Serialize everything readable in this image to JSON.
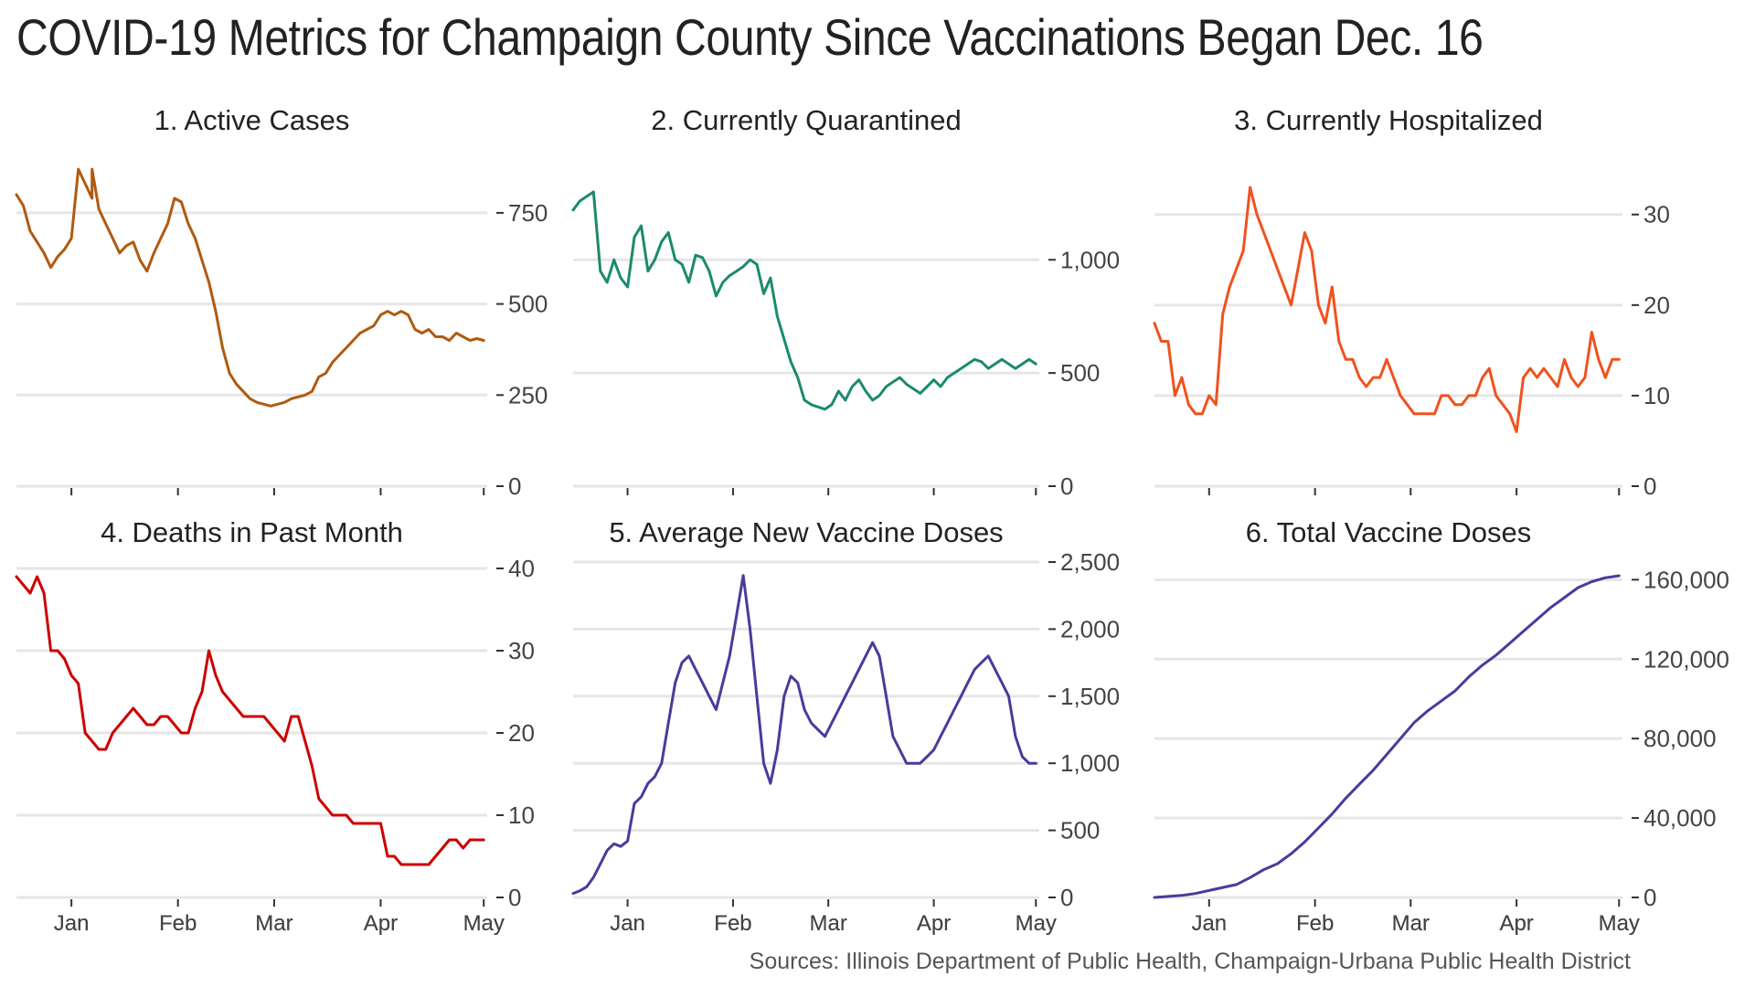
{
  "title": "COVID-19 Metrics for Champaign County Since Vaccinations Began Dec. 16",
  "source": "Sources: Illinois Department of Public Health, Champaign-Urbana Public Health District",
  "chart_data": [
    {
      "type": "line",
      "title": "1. Active Cases",
      "color": "#b05a10",
      "xlabel": "",
      "ylabel": "",
      "xticks": [
        "Jan",
        "Feb",
        "Mar",
        "Apr",
        "May"
      ],
      "xtick_days": [
        16,
        47,
        75,
        106,
        136
      ],
      "xlim": [
        0,
        137
      ],
      "yticks": [
        0,
        250,
        500,
        750
      ],
      "ytick_labels": [
        "0",
        "250",
        "500",
        "750"
      ],
      "ylim": [
        0,
        820
      ],
      "grid": true,
      "series": [
        {
          "name": "Active Cases",
          "x": [
            0,
            2,
            4,
            6,
            8,
            10,
            12,
            14,
            16,
            18,
            20,
            22,
            22,
            24,
            26,
            28,
            30,
            32,
            34,
            36,
            38,
            40,
            42,
            44,
            46,
            48,
            50,
            52,
            54,
            56,
            58,
            60,
            62,
            64,
            66,
            68,
            70,
            72,
            74,
            76,
            78,
            80,
            82,
            84,
            86,
            88,
            90,
            92,
            94,
            96,
            98,
            100,
            102,
            104,
            106,
            108,
            110,
            112,
            114,
            116,
            118,
            120,
            122,
            124,
            126,
            128,
            130,
            132,
            134,
            136
          ],
          "y": [
            800,
            770,
            700,
            670,
            640,
            600,
            630,
            650,
            680,
            870,
            830,
            790,
            870,
            760,
            720,
            680,
            640,
            660,
            670,
            620,
            590,
            640,
            680,
            720,
            790,
            780,
            720,
            680,
            620,
            560,
            480,
            380,
            310,
            280,
            260,
            240,
            230,
            225,
            220,
            225,
            230,
            240,
            245,
            250,
            260,
            300,
            310,
            340,
            360,
            380,
            400,
            420,
            430,
            440,
            470,
            480,
            470,
            480,
            470,
            430,
            420,
            430,
            410,
            410,
            400,
            420,
            410,
            400,
            405,
            400
          ]
        }
      ]
    },
    {
      "type": "line",
      "title": "2. Currently Quarantined",
      "color": "#1b8a6e",
      "xlabel": "",
      "ylabel": "",
      "xticks": [
        "Jan",
        "Feb",
        "Mar",
        "Apr",
        "May"
      ],
      "xtick_days": [
        16,
        47,
        75,
        106,
        136
      ],
      "xlim": [
        0,
        137
      ],
      "yticks": [
        0,
        500,
        1000
      ],
      "ytick_labels": [
        "0",
        "500",
        "1,000"
      ],
      "ylim": [
        0,
        1320
      ],
      "grid": true,
      "series": [
        {
          "name": "Currently Quarantined",
          "x": [
            0,
            2,
            4,
            6,
            8,
            10,
            12,
            14,
            16,
            18,
            20,
            22,
            24,
            26,
            28,
            30,
            32,
            34,
            36,
            38,
            40,
            42,
            44,
            46,
            48,
            50,
            52,
            54,
            56,
            58,
            60,
            62,
            64,
            66,
            68,
            70,
            72,
            74,
            76,
            78,
            80,
            82,
            84,
            86,
            88,
            90,
            92,
            94,
            96,
            98,
            100,
            102,
            104,
            106,
            108,
            110,
            112,
            114,
            116,
            118,
            120,
            122,
            124,
            126,
            128,
            130,
            132,
            134,
            136
          ],
          "y": [
            1220,
            1260,
            1280,
            1300,
            950,
            900,
            1000,
            920,
            880,
            1100,
            1150,
            950,
            1000,
            1080,
            1120,
            1000,
            980,
            900,
            1020,
            1010,
            950,
            840,
            900,
            930,
            950,
            970,
            1000,
            980,
            850,
            920,
            750,
            650,
            550,
            480,
            380,
            360,
            350,
            340,
            360,
            420,
            380,
            440,
            470,
            420,
            380,
            400,
            440,
            460,
            480,
            450,
            430,
            410,
            440,
            470,
            440,
            480,
            500,
            520,
            540,
            560,
            550,
            520,
            540,
            560,
            540,
            520,
            540,
            560,
            540
          ]
        }
      ]
    },
    {
      "type": "line",
      "title": "3. Currently Hospitalized",
      "color": "#f0521e",
      "xlabel": "",
      "ylabel": "",
      "xticks": [
        "Jan",
        "Feb",
        "Mar",
        "Apr",
        "May"
      ],
      "xtick_days": [
        16,
        47,
        75,
        106,
        136
      ],
      "xlim": [
        0,
        137
      ],
      "yticks": [
        0,
        10,
        20,
        30
      ],
      "ytick_labels": [
        "0",
        "10",
        "20",
        "30"
      ],
      "ylim": [
        0,
        33
      ],
      "grid": true,
      "series": [
        {
          "name": "Currently Hospitalized",
          "x": [
            0,
            2,
            4,
            6,
            8,
            10,
            12,
            14,
            16,
            18,
            20,
            22,
            24,
            26,
            28,
            30,
            32,
            34,
            36,
            38,
            40,
            42,
            44,
            46,
            48,
            50,
            52,
            54,
            56,
            58,
            60,
            62,
            64,
            66,
            68,
            70,
            72,
            74,
            76,
            78,
            80,
            82,
            84,
            86,
            88,
            90,
            92,
            94,
            96,
            98,
            100,
            102,
            104,
            106,
            108,
            110,
            112,
            114,
            116,
            118,
            120,
            122,
            124,
            126,
            128,
            130,
            132,
            134,
            136
          ],
          "y": [
            18,
            16,
            16,
            10,
            12,
            9,
            8,
            8,
            10,
            9,
            19,
            22,
            24,
            26,
            33,
            30,
            28,
            26,
            24,
            22,
            20,
            24,
            28,
            26,
            20,
            18,
            22,
            16,
            14,
            14,
            12,
            11,
            12,
            12,
            14,
            12,
            10,
            9,
            8,
            8,
            8,
            8,
            10,
            10,
            9,
            9,
            10,
            10,
            12,
            13,
            10,
            9,
            8,
            6,
            12,
            13,
            12,
            13,
            12,
            11,
            14,
            12,
            11,
            12,
            17,
            14,
            12,
            14,
            14
          ]
        }
      ]
    },
    {
      "type": "line",
      "title": "4. Deaths in Past Month",
      "color": "#cc0000",
      "xlabel": "",
      "ylabel": "",
      "xticks": [
        "Jan",
        "Feb",
        "Mar",
        "Apr",
        "May"
      ],
      "xtick_days": [
        16,
        47,
        75,
        106,
        136
      ],
      "xlim": [
        0,
        137
      ],
      "yticks": [
        0,
        10,
        20,
        30,
        40
      ],
      "ytick_labels": [
        "0",
        "10",
        "20",
        "30",
        "40"
      ],
      "ylim": [
        0,
        40
      ],
      "grid": true,
      "series": [
        {
          "name": "Deaths in Past Month",
          "x": [
            0,
            2,
            4,
            6,
            8,
            10,
            12,
            14,
            16,
            18,
            20,
            22,
            24,
            26,
            28,
            30,
            32,
            34,
            36,
            38,
            40,
            42,
            44,
            46,
            48,
            50,
            52,
            54,
            56,
            58,
            60,
            62,
            64,
            66,
            68,
            70,
            72,
            74,
            76,
            78,
            80,
            82,
            84,
            86,
            88,
            90,
            92,
            94,
            96,
            98,
            100,
            102,
            104,
            106,
            108,
            110,
            112,
            114,
            116,
            118,
            120,
            122,
            124,
            126,
            128,
            130,
            132,
            134,
            136
          ],
          "y": [
            39,
            38,
            37,
            39,
            37,
            30,
            30,
            29,
            27,
            26,
            20,
            19,
            18,
            18,
            20,
            21,
            22,
            23,
            22,
            21,
            21,
            22,
            22,
            21,
            20,
            20,
            23,
            25,
            30,
            27,
            25,
            24,
            23,
            22,
            22,
            22,
            22,
            21,
            20,
            19,
            22,
            22,
            19,
            16,
            12,
            11,
            10,
            10,
            10,
            9,
            9,
            9,
            9,
            9,
            5,
            5,
            4,
            4,
            4,
            4,
            4,
            5,
            6,
            7,
            7,
            6,
            7,
            7,
            7
          ]
        }
      ]
    },
    {
      "type": "line",
      "title": "5. Average New Vaccine Doses",
      "color": "#4b3a9c",
      "xlabel": "",
      "ylabel": "",
      "xticks": [
        "Jan",
        "Feb",
        "Mar",
        "Apr",
        "May"
      ],
      "xtick_days": [
        16,
        47,
        75,
        106,
        136
      ],
      "xlim": [
        0,
        137
      ],
      "yticks": [
        0,
        500,
        1000,
        1500,
        2000,
        2500
      ],
      "ytick_labels": [
        "0",
        "500",
        "1,000",
        "1,500",
        "2,000",
        "2,500"
      ],
      "ylim": [
        0,
        2500
      ],
      "grid": true,
      "series": [
        {
          "name": "Average New Vaccine Doses",
          "x": [
            0,
            2,
            4,
            6,
            8,
            10,
            12,
            14,
            16,
            18,
            20,
            22,
            24,
            26,
            28,
            30,
            32,
            34,
            36,
            38,
            40,
            42,
            44,
            46,
            48,
            50,
            52,
            54,
            56,
            58,
            60,
            62,
            64,
            66,
            68,
            70,
            72,
            74,
            76,
            78,
            80,
            82,
            84,
            86,
            88,
            90,
            92,
            94,
            96,
            98,
            100,
            102,
            104,
            106,
            108,
            110,
            112,
            114,
            116,
            118,
            120,
            122,
            124,
            126,
            128,
            130,
            132,
            134,
            136
          ],
          "y": [
            30,
            50,
            80,
            150,
            250,
            350,
            400,
            380,
            420,
            700,
            750,
            850,
            900,
            1000,
            1300,
            1600,
            1750,
            1800,
            1700,
            1600,
            1500,
            1400,
            1600,
            1800,
            2100,
            2400,
            2000,
            1500,
            1000,
            850,
            1100,
            1500,
            1650,
            1600,
            1400,
            1300,
            1250,
            1200,
            1300,
            1400,
            1500,
            1600,
            1700,
            1800,
            1900,
            1800,
            1500,
            1200,
            1100,
            1000,
            1000,
            1000,
            1050,
            1100,
            1200,
            1300,
            1400,
            1500,
            1600,
            1700,
            1750,
            1800,
            1700,
            1600,
            1500,
            1200,
            1050,
            1000,
            1000
          ]
        }
      ]
    },
    {
      "type": "line",
      "title": "6. Total Vaccine Doses",
      "color": "#4b3a9c",
      "xlabel": "",
      "ylabel": "",
      "xticks": [
        "Jan",
        "Feb",
        "Mar",
        "Apr",
        "May"
      ],
      "xtick_days": [
        16,
        47,
        75,
        106,
        136
      ],
      "xlim": [
        0,
        137
      ],
      "yticks": [
        0,
        40000,
        80000,
        120000,
        160000
      ],
      "ytick_labels": [
        "0",
        "40,000",
        "80,000",
        "120,000",
        "160,000"
      ],
      "ylim": [
        0,
        162000
      ],
      "grid": true,
      "series": [
        {
          "name": "Total Vaccine Doses",
          "x": [
            0,
            4,
            8,
            12,
            16,
            20,
            24,
            28,
            32,
            36,
            40,
            44,
            48,
            52,
            56,
            60,
            64,
            68,
            72,
            76,
            80,
            84,
            88,
            92,
            96,
            100,
            104,
            108,
            112,
            116,
            120,
            124,
            128,
            132,
            136
          ],
          "y": [
            0,
            500,
            1000,
            2000,
            3500,
            5000,
            6500,
            10000,
            14000,
            17000,
            22000,
            28000,
            35000,
            42000,
            50000,
            57000,
            64000,
            72000,
            80000,
            88000,
            94000,
            99000,
            104000,
            111000,
            117000,
            122000,
            128000,
            134000,
            140000,
            146000,
            151000,
            156000,
            159000,
            161000,
            162000
          ]
        }
      ]
    }
  ]
}
